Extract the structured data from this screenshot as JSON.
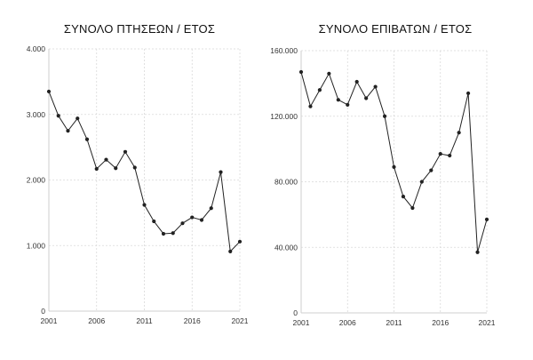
{
  "chart_data": [
    {
      "type": "line",
      "title": "ΣΥΝΟΛΟ ΠΤΗΣΕΩΝ / ΕΤΟΣ",
      "xlabel": "",
      "ylabel": "",
      "x": [
        2001,
        2002,
        2003,
        2004,
        2005,
        2006,
        2007,
        2008,
        2009,
        2010,
        2011,
        2012,
        2013,
        2014,
        2015,
        2016,
        2017,
        2018,
        2019,
        2020,
        2021
      ],
      "series": [
        {
          "values": [
            3350,
            2980,
            2750,
            2940,
            2620,
            2170,
            2310,
            2180,
            2430,
            2190,
            1620,
            1370,
            1180,
            1190,
            1340,
            1430,
            1390,
            1570,
            2120,
            910,
            1060
          ]
        }
      ],
      "xlim": [
        2001,
        2021
      ],
      "ylim": [
        0,
        4000
      ],
      "x_ticks": [
        2001,
        2006,
        2011,
        2016,
        2021
      ],
      "x_tick_labels": [
        "2001",
        "2006",
        "2011",
        "2016",
        "2021"
      ],
      "y_ticks": [
        0,
        1000,
        2000,
        3000,
        4000
      ],
      "y_tick_labels": [
        "0",
        "1.000",
        "2.000",
        "3.000",
        "4.000"
      ],
      "grid": true,
      "legend": "none",
      "line_color": "#222222"
    },
    {
      "type": "line",
      "title": "ΣΥΝΟΛΟ ΕΠΙΒΑΤΩΝ / ΕΤΟΣ",
      "xlabel": "",
      "ylabel": "",
      "x": [
        2001,
        2002,
        2003,
        2004,
        2005,
        2006,
        2007,
        2008,
        2009,
        2010,
        2011,
        2012,
        2013,
        2014,
        2015,
        2016,
        2017,
        2018,
        2019,
        2020,
        2021
      ],
      "series": [
        {
          "values": [
            147000,
            126000,
            136000,
            146000,
            130000,
            127000,
            141000,
            131000,
            138000,
            120000,
            89000,
            71000,
            64000,
            80000,
            87000,
            97000,
            96000,
            110000,
            134000,
            37000,
            57000
          ]
        }
      ],
      "xlim": [
        2001,
        2021
      ],
      "ylim": [
        0,
        160000
      ],
      "x_ticks": [
        2001,
        2006,
        2011,
        2016,
        2021
      ],
      "x_tick_labels": [
        "2001",
        "2006",
        "2011",
        "2016",
        "2021"
      ],
      "y_ticks": [
        0,
        40000,
        80000,
        120000,
        160000
      ],
      "y_tick_labels": [
        "0",
        "40.000",
        "80.000",
        "120.000",
        "160.000"
      ],
      "grid": true,
      "legend": "none",
      "line_color": "#222222"
    }
  ]
}
